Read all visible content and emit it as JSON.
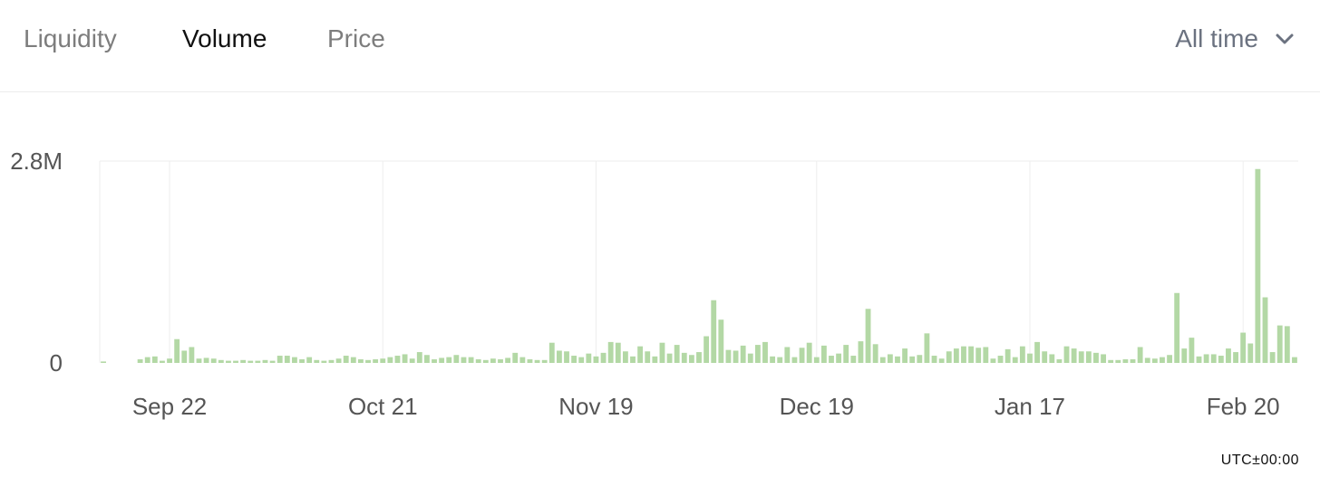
{
  "tabs": [
    {
      "label": "Liquidity",
      "active": false
    },
    {
      "label": "Volume",
      "active": true
    },
    {
      "label": "Price",
      "active": false
    }
  ],
  "range_selector": {
    "label": "All time",
    "icon": "chevron-down-icon"
  },
  "timezone": "UTC±00:00",
  "colors": {
    "bar": "#b3d8a5",
    "text_active": "#111111",
    "text_inactive": "#7d7d7d",
    "grid": "#eeeeee"
  },
  "chart_data": {
    "type": "bar",
    "ylim": [
      0,
      2800000
    ],
    "y_ticks": [
      {
        "value": 0,
        "label": "0"
      },
      {
        "value": 2800000,
        "label": "2.8M"
      }
    ],
    "x_ticks": [
      {
        "index": 9,
        "label": "Sep 22"
      },
      {
        "index": 38,
        "label": "Oct 21"
      },
      {
        "index": 67,
        "label": "Nov 19"
      },
      {
        "index": 97,
        "label": "Dec 19"
      },
      {
        "index": 126,
        "label": "Jan 17"
      },
      {
        "index": 155,
        "label": "Feb 20"
      }
    ],
    "values": [
      20000,
      0,
      0,
      0,
      0,
      50000,
      80000,
      90000,
      30000,
      60000,
      330000,
      170000,
      220000,
      60000,
      70000,
      60000,
      40000,
      30000,
      30000,
      40000,
      30000,
      30000,
      40000,
      30000,
      100000,
      100000,
      80000,
      50000,
      80000,
      40000,
      30000,
      40000,
      60000,
      100000,
      80000,
      50000,
      40000,
      50000,
      60000,
      80000,
      100000,
      120000,
      60000,
      150000,
      110000,
      50000,
      70000,
      80000,
      110000,
      80000,
      80000,
      50000,
      40000,
      60000,
      50000,
      70000,
      140000,
      80000,
      50000,
      40000,
      40000,
      280000,
      170000,
      160000,
      100000,
      80000,
      130000,
      90000,
      140000,
      290000,
      280000,
      160000,
      90000,
      230000,
      160000,
      90000,
      280000,
      130000,
      250000,
      140000,
      110000,
      150000,
      370000,
      870000,
      600000,
      180000,
      170000,
      240000,
      130000,
      250000,
      290000,
      90000,
      80000,
      220000,
      80000,
      210000,
      280000,
      80000,
      240000,
      100000,
      130000,
      250000,
      100000,
      300000,
      750000,
      260000,
      80000,
      120000,
      90000,
      200000,
      90000,
      110000,
      410000,
      100000,
      60000,
      160000,
      200000,
      230000,
      230000,
      210000,
      220000,
      60000,
      100000,
      190000,
      80000,
      230000,
      130000,
      290000,
      160000,
      120000,
      50000,
      230000,
      200000,
      160000,
      160000,
      140000,
      120000,
      40000,
      40000,
      50000,
      50000,
      220000,
      70000,
      60000,
      80000,
      110000,
      970000,
      200000,
      350000,
      90000,
      120000,
      120000,
      100000,
      200000,
      150000,
      420000,
      270000,
      2690000,
      910000,
      150000,
      520000,
      510000,
      80000
    ]
  }
}
